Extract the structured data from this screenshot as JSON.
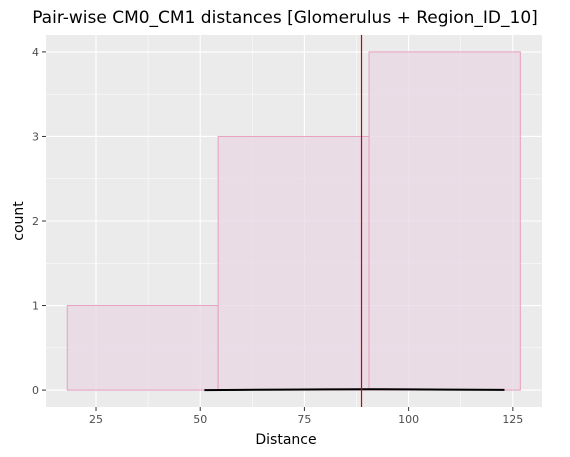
{
  "chart_data": {
    "type": "bar",
    "title": "Pair-wise CM0_CM1 distances [Glomerulus + Region_ID_10]",
    "xlabel": "Distance",
    "ylabel": "count",
    "xlim": [
      13,
      132
    ],
    "ylim": [
      -0.2,
      4.2
    ],
    "x_ticks": [
      25,
      50,
      75,
      100,
      125
    ],
    "y_ticks": [
      0,
      1,
      2,
      3,
      4
    ],
    "bins": [
      {
        "start": 18.1,
        "end": 54.3,
        "count": 1
      },
      {
        "start": 54.3,
        "end": 90.5,
        "count": 3
      },
      {
        "start": 90.5,
        "end": 126.8,
        "count": 4
      }
    ],
    "density_line": {
      "x": [
        51,
        60,
        70,
        80,
        90,
        100,
        110,
        123
      ],
      "y": [
        0.0,
        0.003,
        0.006,
        0.009,
        0.01,
        0.009,
        0.006,
        0.002
      ]
    },
    "vline_x": 88.7,
    "colors": {
      "panel": "#ebebeb",
      "grid": "#ffffff",
      "bar_fill": "#e8d7e3",
      "bar_stroke": "#e8a0bf",
      "vline": "#cc0000",
      "density": "#000000"
    },
    "grid": true,
    "legend": "none"
  }
}
